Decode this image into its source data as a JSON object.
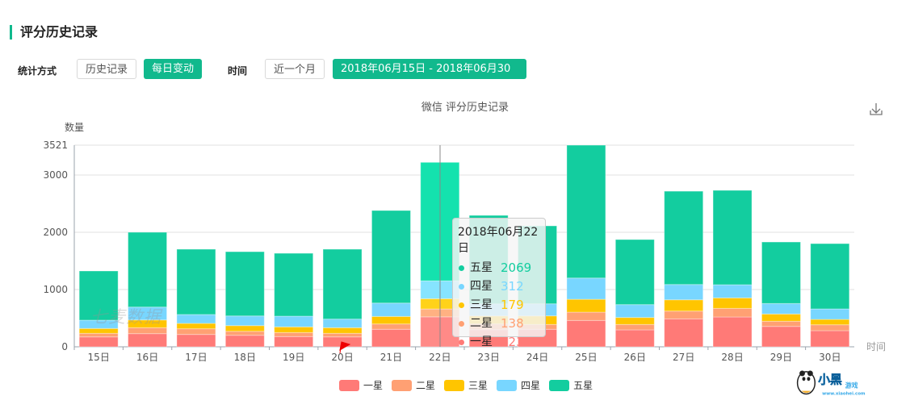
{
  "header": {
    "title": "评分历史记录"
  },
  "filters": {
    "method_label": "统计方式",
    "history_btn": "历史记录",
    "daily_btn": "每日变动",
    "time_label": "时间",
    "month_btn": "近一个月",
    "date_range": "2018年06月15日 - 2018年06月30日"
  },
  "icons": {
    "download": "download-icon",
    "dropdown": "caret-down-icon"
  },
  "colors": {
    "accent": "#11b98d",
    "one": "#ff7a77",
    "two": "#ffa073",
    "three": "#ffc500",
    "four": "#78d6ff",
    "five": "#13cd9f"
  },
  "watermarks": {
    "qimai": "七麦数据",
    "logo": "小黑游戏 www.xiaohei.com"
  },
  "tooltip": {
    "date": "2018年06月22日",
    "rows": [
      {
        "name": "五星",
        "value": "2069"
      },
      {
        "name": "四星",
        "value": "312"
      },
      {
        "name": "三星",
        "value": "179"
      },
      {
        "name": "二星",
        "value": "138"
      },
      {
        "name": "一星",
        "value": "523"
      }
    ]
  },
  "chart_data": {
    "type": "bar",
    "stacked": true,
    "title": "微信 评分历史记录",
    "ylabel": "数量",
    "xlabel": "时间",
    "ylim": [
      0,
      3521
    ],
    "yticks": [
      0,
      1000,
      2000,
      3000,
      3521
    ],
    "categories": [
      "15日",
      "16日",
      "17日",
      "18日",
      "19日",
      "20日",
      "21日",
      "22日",
      "23日",
      "24日",
      "25日",
      "26日",
      "27日",
      "28日",
      "29日",
      "30日"
    ],
    "highlight": "22日",
    "legend": [
      "一星",
      "二星",
      "三星",
      "四星",
      "五星"
    ],
    "legend_position": "bottom",
    "series": [
      {
        "name": "一星",
        "values": [
          173,
          230,
          216,
          201,
          179,
          173,
          306,
          523,
          300,
          306,
          460,
          296,
          488,
          521,
          356,
          282
        ]
      },
      {
        "name": "二星",
        "values": [
          62,
          104,
          99,
          70,
          70,
          62,
          93,
          138,
          100,
          84,
          145,
          94,
          136,
          150,
          90,
          103
        ]
      },
      {
        "name": "三星",
        "values": [
          85,
          135,
          94,
          99,
          99,
          99,
          131,
          179,
          140,
          150,
          225,
          122,
          197,
          183,
          127,
          94
        ]
      },
      {
        "name": "四星",
        "values": [
          145,
          225,
          155,
          169,
          187,
          150,
          234,
          312,
          210,
          211,
          371,
          225,
          267,
          230,
          183,
          183
        ]
      },
      {
        "name": "五星",
        "values": [
          859,
          1306,
          1140,
          1122,
          1098,
          1220,
          1616,
          2069,
          1545,
          1361,
          2320,
          1136,
          1629,
          1648,
          1074,
          1140
        ]
      }
    ]
  }
}
